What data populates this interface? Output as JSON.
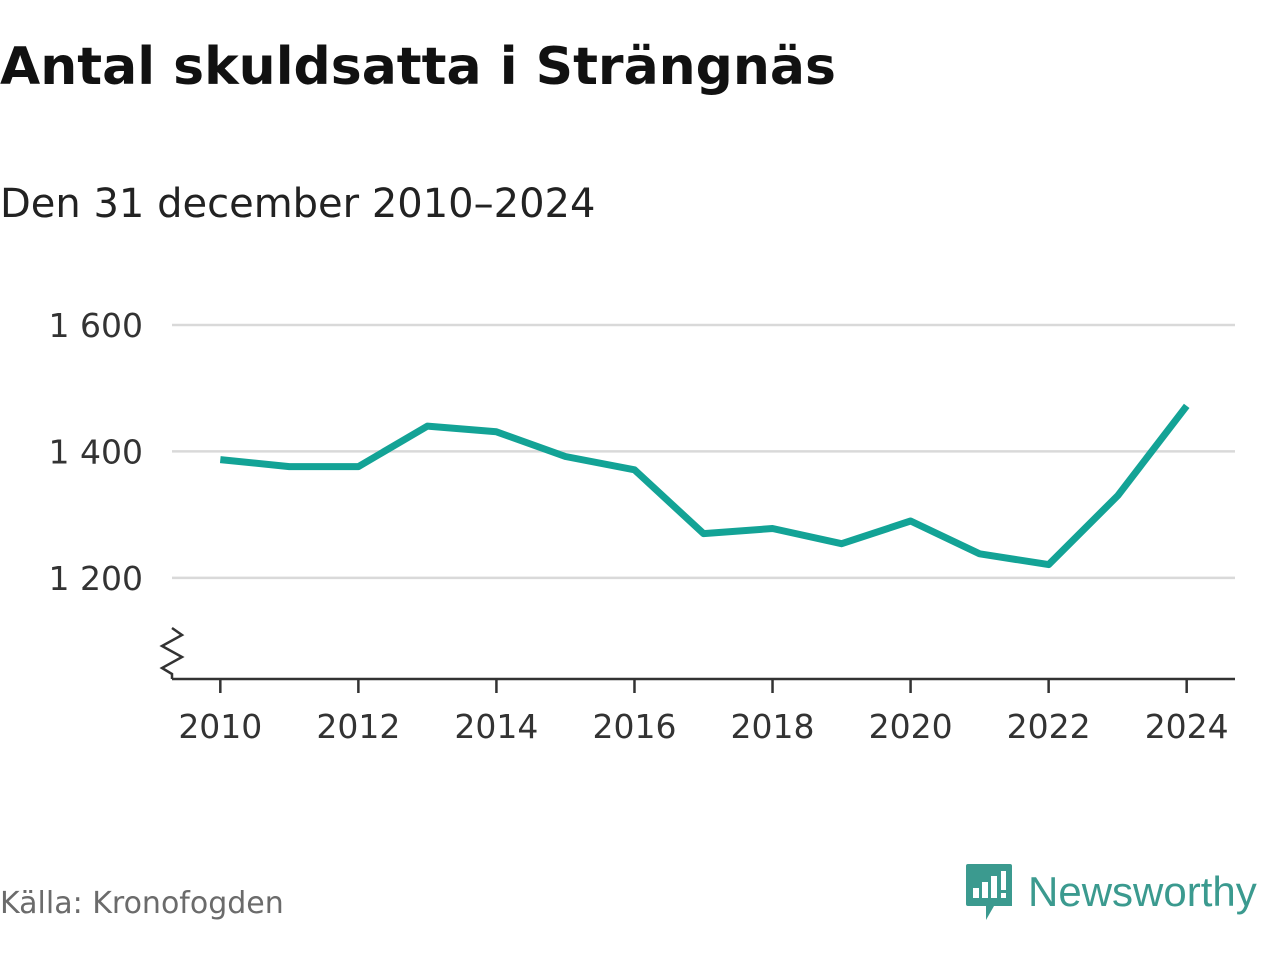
{
  "header": {
    "title": "Antal skuldsatta i Strängnäs",
    "subtitle": "Den 31 december 2010–2024"
  },
  "footer": {
    "source": "Källa: Kronofogden",
    "brand_name": "Newsworthy",
    "brand_icon": "newsworthy-logo-icon"
  },
  "colors": {
    "line": "#13a396",
    "grid": "#d9d9d9",
    "axis": "#333333",
    "brand": "#3b9a8f"
  },
  "chart_data": {
    "type": "line",
    "title": "Antal skuldsatta i Strängnäs",
    "subtitle": "Den 31 december 2010–2024",
    "xlabel": "",
    "ylabel": "",
    "x": [
      2010,
      2011,
      2012,
      2013,
      2014,
      2015,
      2016,
      2017,
      2018,
      2019,
      2020,
      2021,
      2022,
      2023,
      2024
    ],
    "series": [
      {
        "values": [
          1387,
          1376,
          1376,
          1440,
          1431,
          1392,
          1371,
          1270,
          1278,
          1254,
          1290,
          1238,
          1221,
          1330,
          1472
        ]
      }
    ],
    "x_ticks": [
      2010,
      2012,
      2014,
      2016,
      2018,
      2020,
      2022,
      2024
    ],
    "x_tick_labels": [
      "2010",
      "2012",
      "2014",
      "2016",
      "2018",
      "2020",
      "2022",
      "2024"
    ],
    "y_ticks": [
      1200,
      1400,
      1600
    ],
    "y_tick_labels": [
      "1 200",
      "1 400",
      "1 600"
    ],
    "ylim": [
      1040,
      1600
    ],
    "xlim": [
      2009.3,
      2024.7
    ],
    "y_axis_break": true,
    "grid": "horizontal",
    "legend": "none"
  }
}
